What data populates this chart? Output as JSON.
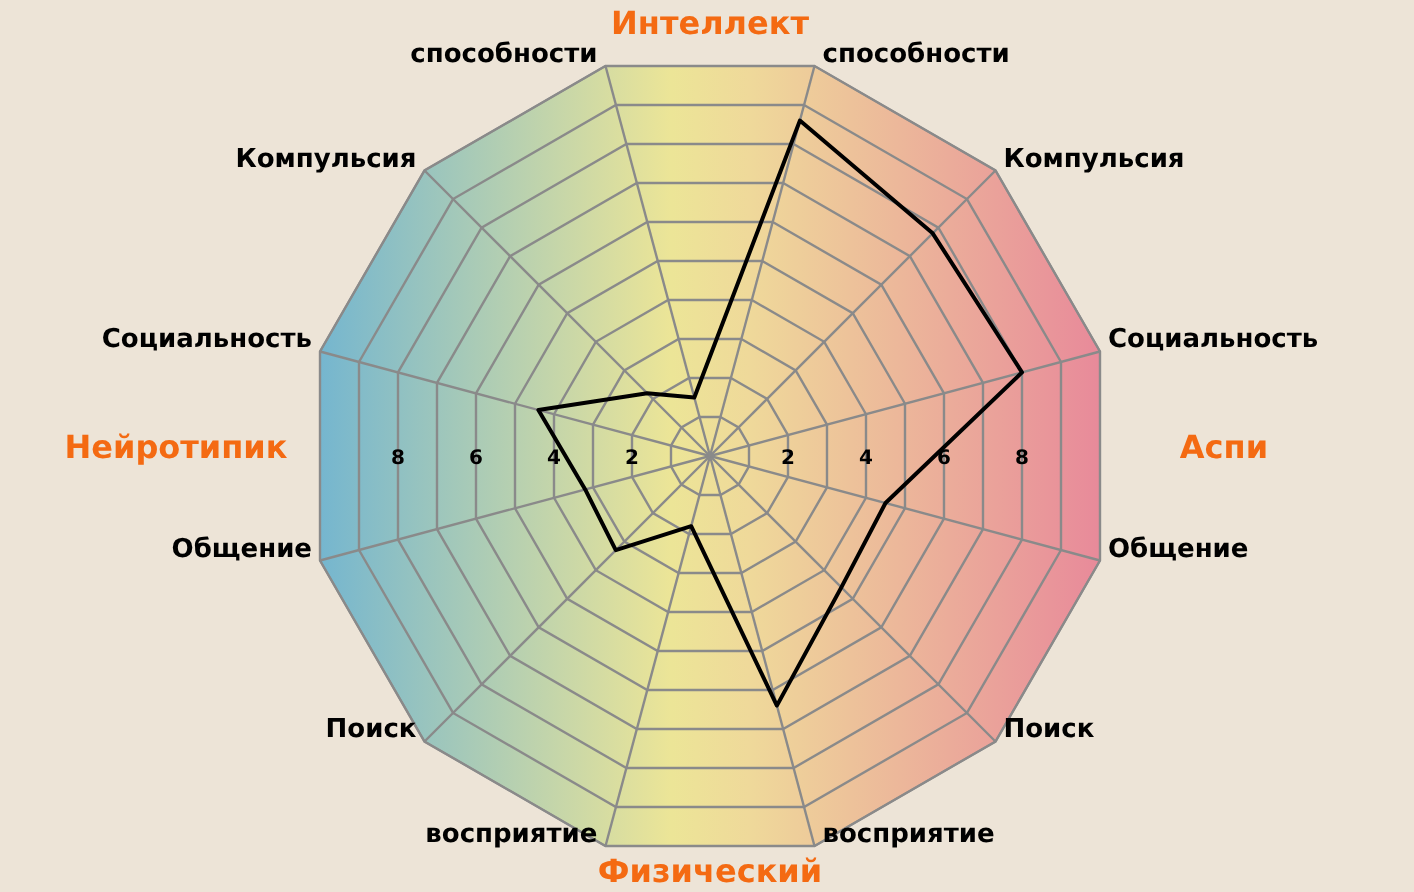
{
  "chart_data": {
    "type": "radar",
    "categories": [
      "способности",
      "Компульсия",
      "Социальность",
      "Общение",
      "Поиск",
      "восприятие",
      "восприятие",
      "Поиск",
      "Общение",
      "Социальность",
      "Компульсия",
      "способности"
    ],
    "series": [
      {
        "color": "#000000",
        "values": [
          8.6,
          7.8,
          8.0,
          4.5,
          4.6,
          6.4,
          1.8,
          3.3,
          3.2,
          4.4,
          2.2,
          1.5
        ]
      }
    ],
    "ylim": [
      0,
      10
    ],
    "yticks": [
      2,
      4,
      6,
      8,
      2,
      4,
      6,
      8
    ],
    "grid": true,
    "marker": "none",
    "line_style": "solid",
    "annotations": [
      "Интеллект",
      "Аспи",
      "Физический",
      "Нейротипик"
    ]
  }
}
